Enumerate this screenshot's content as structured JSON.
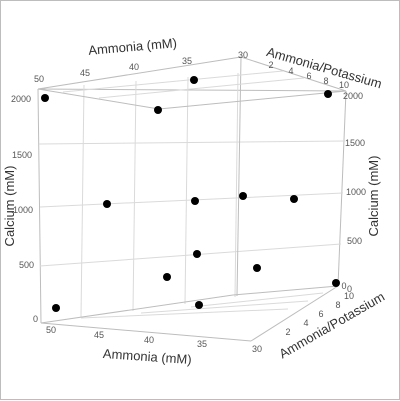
{
  "chart_data": {
    "type": "scatter3d",
    "axes": {
      "x": {
        "label": "Ammonia (mM)",
        "ticks": [
          "50",
          "45",
          "40",
          "35",
          "30"
        ],
        "range": [
          30,
          50
        ]
      },
      "y": {
        "label": "Ammonia/Potassium",
        "ticks": [
          "0",
          "2",
          "4",
          "6",
          "8",
          "10"
        ],
        "range": [
          0,
          10
        ]
      },
      "z": {
        "label": "Calcium (mM)",
        "ticks": [
          "0",
          "500",
          "1000",
          "1500",
          "2000"
        ],
        "range": [
          0,
          2000
        ]
      }
    },
    "marker_color": "#000000",
    "grid": true
  }
}
